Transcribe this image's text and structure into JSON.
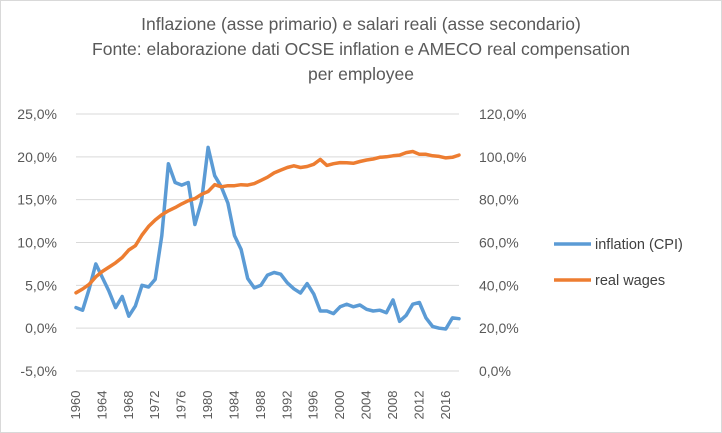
{
  "chart_data": {
    "type": "line",
    "title_lines": [
      "Inflazione (asse primario) e salari reali (asse secondario)",
      "Fonte: elaborazione dati OCSE inflation e AMECO real compensation",
      "per employee"
    ],
    "x_tick_labels": [
      "1960",
      "1964",
      "1968",
      "1972",
      "1976",
      "1980",
      "1984",
      "1988",
      "1992",
      "1996",
      "2000",
      "2004",
      "2008",
      "2012",
      "2016"
    ],
    "x_range": [
      1960,
      2018
    ],
    "y_left": {
      "tick_labels": [
        "25,0%",
        "20,0%",
        "15,0%",
        "10,0%",
        "5,0%",
        "0,0%",
        "-5,0%"
      ],
      "range": [
        -5,
        25
      ],
      "step": 5
    },
    "y_right": {
      "tick_labels": [
        "120,0%",
        "100,0%",
        "80,0%",
        "60,0%",
        "40,0%",
        "20,0%",
        "0,0%"
      ],
      "range": [
        0,
        120
      ],
      "step": 20
    },
    "grid": true,
    "legend_position": "right",
    "series": [
      {
        "name": "inflation (CPI)",
        "axis": "left",
        "color": "#5b9bd5",
        "x": [
          1960,
          1961,
          1962,
          1963,
          1964,
          1965,
          1966,
          1967,
          1968,
          1969,
          1970,
          1971,
          1972,
          1973,
          1974,
          1975,
          1976,
          1977,
          1978,
          1979,
          1980,
          1981,
          1982,
          1983,
          1984,
          1985,
          1986,
          1987,
          1988,
          1989,
          1990,
          1991,
          1992,
          1993,
          1994,
          1995,
          1996,
          1997,
          1998,
          1999,
          2000,
          2001,
          2002,
          2003,
          2004,
          2005,
          2006,
          2007,
          2008,
          2009,
          2010,
          2011,
          2012,
          2013,
          2014,
          2015,
          2016,
          2017,
          2018
        ],
        "values": [
          2.4,
          2.1,
          4.6,
          7.5,
          5.9,
          4.3,
          2.4,
          3.7,
          1.4,
          2.6,
          5.0,
          4.8,
          5.7,
          10.8,
          19.2,
          17.0,
          16.7,
          17.0,
          12.1,
          14.8,
          21.1,
          17.8,
          16.5,
          14.6,
          10.8,
          9.2,
          5.8,
          4.7,
          5.0,
          6.2,
          6.5,
          6.3,
          5.3,
          4.6,
          4.1,
          5.2,
          4.0,
          2.0,
          2.0,
          1.7,
          2.5,
          2.8,
          2.5,
          2.7,
          2.2,
          2.0,
          2.1,
          1.8,
          3.3,
          0.8,
          1.5,
          2.8,
          3.0,
          1.2,
          0.2,
          0.0,
          -0.1,
          1.2,
          1.1
        ]
      },
      {
        "name": "real wages",
        "axis": "right",
        "color": "#ed7d31",
        "x": [
          1960,
          1961,
          1962,
          1963,
          1964,
          1965,
          1966,
          1967,
          1968,
          1969,
          1970,
          1971,
          1972,
          1973,
          1974,
          1975,
          1976,
          1977,
          1978,
          1979,
          1980,
          1981,
          1982,
          1983,
          1984,
          1985,
          1986,
          1987,
          1988,
          1989,
          1990,
          1991,
          1992,
          1993,
          1994,
          1995,
          1996,
          1997,
          1998,
          1999,
          2000,
          2001,
          2002,
          2003,
          2004,
          2005,
          2006,
          2007,
          2008,
          2009,
          2010,
          2011,
          2012,
          2013,
          2014,
          2015,
          2016,
          2017,
          2018
        ],
        "values": [
          36.5,
          38.3,
          40.5,
          44.0,
          46.5,
          48.5,
          50.5,
          53.0,
          56.5,
          58.5,
          63.5,
          67.5,
          70.5,
          73.0,
          74.8,
          76.3,
          78.0,
          79.5,
          80.5,
          82.5,
          83.8,
          87.0,
          86.0,
          86.5,
          86.5,
          87.0,
          86.8,
          87.5,
          89.0,
          90.5,
          92.5,
          93.8,
          95.0,
          95.8,
          95.0,
          95.5,
          96.5,
          98.8,
          96.0,
          96.8,
          97.3,
          97.2,
          97.0,
          97.8,
          98.5,
          99.0,
          99.8,
          100.0,
          100.5,
          100.8,
          102.0,
          102.5,
          101.2,
          101.2,
          100.5,
          100.2,
          99.5,
          99.8,
          100.8
        ]
      }
    ]
  }
}
